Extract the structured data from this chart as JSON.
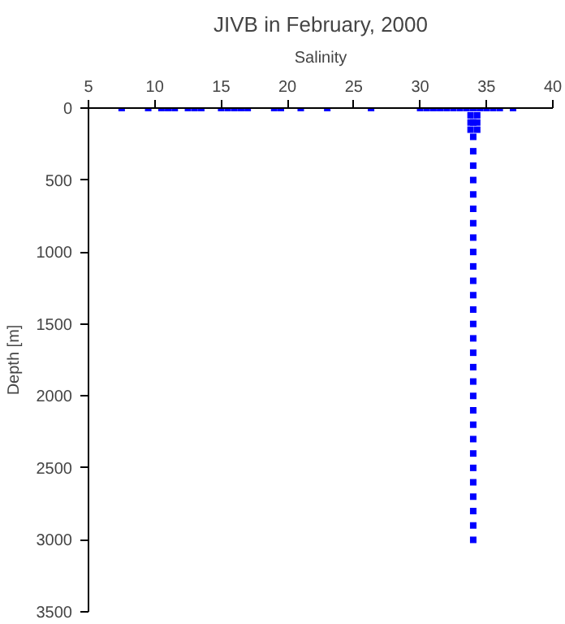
{
  "chart_data": {
    "type": "scatter",
    "title": "JIVB in February, 2000",
    "xlabel": "Salinity",
    "ylabel": "Depth [m]",
    "xlim": [
      5,
      40
    ],
    "xticks": [
      5,
      10,
      15,
      20,
      25,
      30,
      35,
      40
    ],
    "ylim": [
      3500,
      0
    ],
    "yticks": [
      0,
      500,
      1000,
      1500,
      2000,
      2500,
      3000,
      3500
    ],
    "grid": false,
    "marker": "square",
    "series": [
      {
        "color": "#0000ff",
        "x": [
          7.5,
          9.5,
          10.5,
          11,
          11.5,
          12.5,
          13,
          13.5,
          15,
          15.5,
          16,
          16.5,
          17,
          19,
          19.5,
          21,
          23,
          26.3,
          30,
          30.5,
          31,
          31.5,
          32,
          32.5,
          33,
          33.5,
          34,
          34.5,
          35,
          35.5,
          36,
          37,
          33.8,
          34.3,
          33.8,
          34.3,
          33.8,
          34.3,
          34,
          34,
          34,
          34,
          34,
          34,
          34,
          34,
          34,
          34,
          34,
          34,
          34,
          34,
          34,
          34,
          34,
          34,
          34,
          34,
          34,
          34,
          34,
          34,
          34,
          34,
          34,
          34,
          34,
          34
        ],
        "values": [
          0,
          0,
          0,
          0,
          0,
          0,
          0,
          0,
          0,
          0,
          0,
          0,
          0,
          0,
          0,
          0,
          0,
          0,
          0,
          0,
          0,
          0,
          0,
          0,
          0,
          0,
          0,
          0,
          0,
          0,
          0,
          0,
          50,
          50,
          100,
          100,
          150,
          150,
          100,
          200,
          300,
          400,
          500,
          600,
          700,
          800,
          900,
          1000,
          1100,
          1200,
          1300,
          1400,
          1500,
          1600,
          1700,
          1800,
          1900,
          2000,
          2100,
          2200,
          2300,
          2400,
          2500,
          2600,
          2700,
          2800,
          2900,
          3000
        ]
      }
    ]
  }
}
